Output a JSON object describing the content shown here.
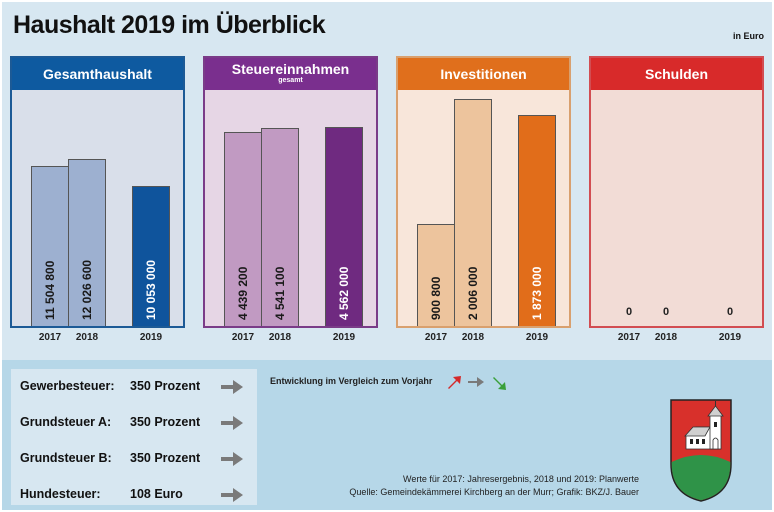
{
  "header": {
    "title": "Haushalt 2019 im Überblick",
    "unit": "in Euro"
  },
  "colors": {
    "gesamthaushalt": {
      "head": "#0e5aa0",
      "bg": "#d9dfea",
      "bar": "#9db0d0",
      "highlight": "#0f549c",
      "border": "#1c5a96"
    },
    "steuereinnahmen": {
      "head": "#7a2f8e",
      "bg": "#e6d6e5",
      "bar": "#c19ac2",
      "highlight": "#6f2a80",
      "border": "#7a3c88"
    },
    "investitionen": {
      "head": "#e06f1c",
      "bg": "#f8e6da",
      "bar": "#edc49d",
      "highlight": "#e16d1a",
      "border": "#d9a06e"
    },
    "schulden": {
      "head": "#d82a2a",
      "bg": "#f2dcd6",
      "border": "#d24d52"
    }
  },
  "chart_data": [
    {
      "type": "bar",
      "title": "Gesamthaushalt",
      "subtitle": "",
      "categories": [
        "2017",
        "2018",
        "2019"
      ],
      "values": [
        11504800,
        12026600,
        10053000
      ],
      "labels": [
        "11 504 800",
        "12 026 600",
        "10 053 000"
      ],
      "ylim": [
        0,
        17000000
      ],
      "xlabel": "",
      "ylabel": "Euro"
    },
    {
      "type": "bar",
      "title": "Steuereinnahmen",
      "subtitle": "gesamt",
      "categories": [
        "2017",
        "2018",
        "2019"
      ],
      "values": [
        4439200,
        4541100,
        4562000
      ],
      "labels": [
        "4 439 200",
        "4 541 100",
        "4 562 000"
      ],
      "ylim": [
        0,
        5400000
      ],
      "xlabel": "",
      "ylabel": "Euro"
    },
    {
      "type": "bar",
      "title": "Investitionen",
      "subtitle": "",
      "categories": [
        "2017",
        "2018",
        "2019"
      ],
      "values": [
        900800,
        2006000,
        1873000
      ],
      "labels": [
        "900 800",
        "2 006 000",
        "1 873 000"
      ],
      "ylim": [
        0,
        2090000
      ],
      "xlabel": "",
      "ylabel": "Euro"
    },
    {
      "type": "bar",
      "title": "Schulden",
      "subtitle": "",
      "categories": [
        "2017",
        "2018",
        "2019"
      ],
      "values": [
        0,
        0,
        0
      ],
      "labels": [
        "0",
        "0",
        "0"
      ],
      "ylim": [
        0,
        1
      ],
      "xlabel": "",
      "ylabel": "Euro"
    }
  ],
  "taxes": [
    {
      "name": "Gewerbesteuer:",
      "value": "350 Prozent",
      "trend": "unchanged"
    },
    {
      "name": "Grundsteuer A:",
      "value": "350 Prozent",
      "trend": "unchanged"
    },
    {
      "name": "Grundsteuer B:",
      "value": "350 Prozent",
      "trend": "unchanged"
    },
    {
      "name": "Hundesteuer:",
      "value": "108 Euro",
      "trend": "unchanged"
    }
  ],
  "legend": {
    "text": "Entwicklung im Vergleich zum Vorjahr",
    "arrows": [
      {
        "icon": "arrow-up-right-icon",
        "meaning": "increase",
        "color": "#d42a2a"
      },
      {
        "icon": "arrow-right-icon",
        "meaning": "unchanged",
        "color": "#7a7a7a"
      },
      {
        "icon": "arrow-down-right-icon",
        "meaning": "decrease",
        "color": "#3aa03a"
      }
    ]
  },
  "notes": {
    "line1": "Werte für 2017: Jahresergebnis, 2018 und 2019: Planwerte",
    "line2": "Quelle:  Gemeindekämmerei Kirchberg an der Murr; Grafik: BKZ/J. Bauer"
  }
}
